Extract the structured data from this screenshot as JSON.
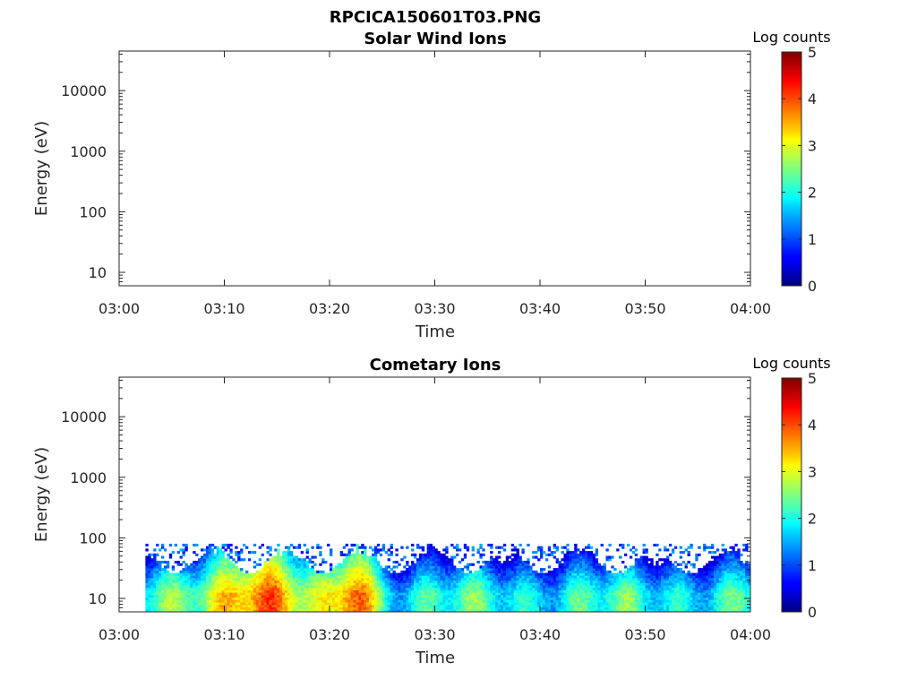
{
  "figure_title": "RPCICA150601T03.PNG",
  "chart_data": [
    {
      "type": "heatmap",
      "title": "Solar Wind Ions",
      "xlabel": "Time",
      "ylabel": "Energy (eV)",
      "x_ticks": [
        "03:00",
        "03:10",
        "03:20",
        "03:30",
        "03:40",
        "03:50",
        "04:00"
      ],
      "xlim": [
        "03:00",
        "04:00"
      ],
      "y_ticks": [
        "10",
        "100",
        "1000",
        "10000"
      ],
      "y_scale": "log",
      "ylim": [
        6,
        45000
      ],
      "colorbar_label": "Log counts",
      "colorbar_ticks": [
        "0",
        "1",
        "2",
        "3",
        "4",
        "5"
      ],
      "clim": [
        0,
        5
      ],
      "colormap": "jet",
      "data_present": false
    },
    {
      "type": "heatmap",
      "title": "Cometary Ions",
      "xlabel": "Time",
      "ylabel": "Energy (eV)",
      "x_ticks": [
        "03:00",
        "03:10",
        "03:20",
        "03:30",
        "03:40",
        "03:50",
        "04:00"
      ],
      "xlim": [
        "03:00",
        "04:00"
      ],
      "y_ticks": [
        "10",
        "100",
        "1000",
        "10000"
      ],
      "y_scale": "log",
      "ylim": [
        6,
        45000
      ],
      "colorbar_label": "Log counts",
      "colorbar_ticks": [
        "0",
        "1",
        "2",
        "3",
        "4",
        "5"
      ],
      "clim": [
        0,
        5
      ],
      "colormap": "jet",
      "data_present": true,
      "data_time_range": [
        "03:02:30",
        "04:00"
      ],
      "data_energy_range_eV": [
        6,
        80
      ],
      "peak_intervals": [
        [
          "03:10",
          "03:16"
        ],
        [
          "03:22",
          "03:23"
        ]
      ],
      "peak_log_counts": 4.3
    }
  ]
}
